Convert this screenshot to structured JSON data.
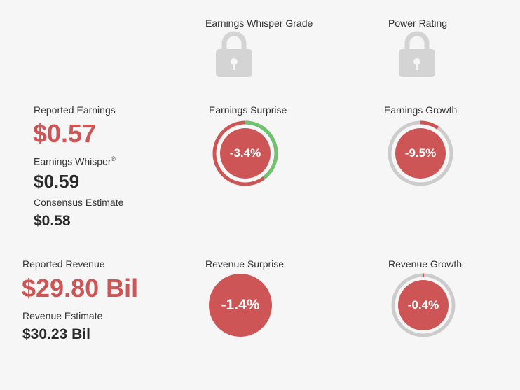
{
  "grades": {
    "whisper_grade_label": "Earnings Whisper Grade",
    "power_rating_label": "Power Rating",
    "whisper_grade_icon": "lock-icon",
    "power_rating_icon": "lock-icon"
  },
  "earnings": {
    "reported_label": "Reported Earnings",
    "reported_value": "$0.57",
    "whisper_label": "Earnings Whisper",
    "whisper_mark": "®",
    "whisper_value": "$0.59",
    "consensus_label": "Consensus Estimate",
    "consensus_value": "$0.58",
    "surprise_label": "Earnings Surprise",
    "surprise_value": "-3.4%",
    "growth_label": "Earnings Growth",
    "growth_value": "-9.5%"
  },
  "revenue": {
    "reported_label": "Reported Revenue",
    "reported_value": "$29.80 Bil",
    "estimate_label": "Revenue Estimate",
    "estimate_value": "$30.23 Bil",
    "surprise_label": "Revenue Surprise",
    "surprise_value": "-1.4%",
    "growth_label": "Revenue Growth",
    "growth_value": "-0.4%"
  },
  "colors": {
    "negative": "#cd5555",
    "positive": "#6cc56c",
    "track": "#cccccc",
    "lock": "#d4d4d4"
  }
}
